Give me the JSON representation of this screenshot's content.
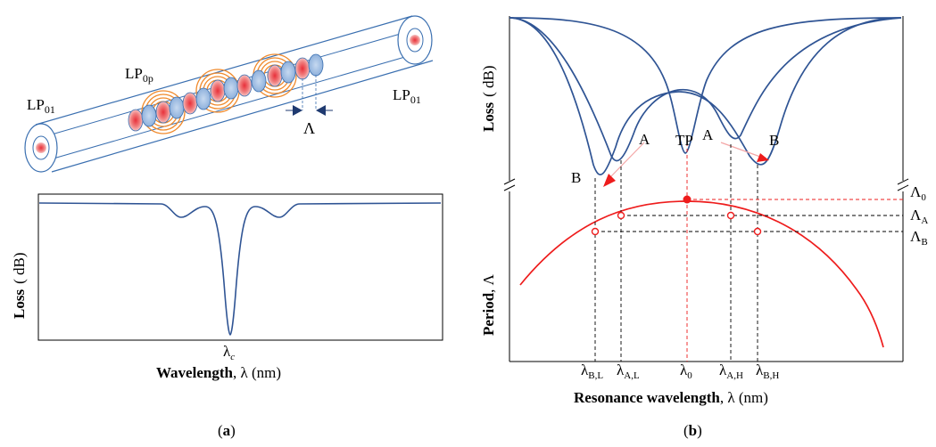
{
  "fiber": {
    "mode_in": {
      "base": "LP",
      "sub": "01"
    },
    "mode_cladding": {
      "base": "LP",
      "sub": "0p"
    },
    "mode_out": {
      "base": "LP",
      "sub": "01"
    },
    "period_symbol": "Λ"
  },
  "panel_a": {
    "ylabel": {
      "bold": "Loss",
      "normal": "( dB)"
    },
    "xlabel": {
      "bold": "Wavelength",
      "normal": ", λ (nm)"
    },
    "tick": {
      "base": "λ",
      "sub": "c"
    },
    "caption": {
      "open": "(",
      "letter": "a",
      "close": ")"
    }
  },
  "panel_b": {
    "top_ylabel": {
      "bold": "Loss",
      "normal": "( dB)"
    },
    "bottom_ylabel": {
      "bold": "Period",
      "normal": ", Λ"
    },
    "xlabel": {
      "bold": "Resonance wavelength",
      "normal": ", λ (nm)"
    },
    "labels": {
      "B": "B",
      "A": "A",
      "TP": "TP"
    },
    "right_ticks": [
      {
        "base": "Λ",
        "sub": "0"
      },
      {
        "base": "Λ",
        "sub": "A"
      },
      {
        "base": "Λ",
        "sub": "B"
      }
    ],
    "x_ticks": [
      {
        "base": "λ",
        "sub": "B,L"
      },
      {
        "base": "λ",
        "sub": "A,L"
      },
      {
        "base": "λ",
        "sub": "0"
      },
      {
        "base": "λ",
        "sub": "A,H"
      },
      {
        "base": "λ",
        "sub": "B,H"
      }
    ],
    "caption": {
      "open": "(",
      "letter": "b",
      "close": ")"
    }
  },
  "colors": {
    "curve": "#2f5494",
    "red": "#ee1c1c",
    "fiber_edge": "#3a6fb0",
    "ring": "#f08a2c",
    "core_blue": "#a8c4e6"
  }
}
